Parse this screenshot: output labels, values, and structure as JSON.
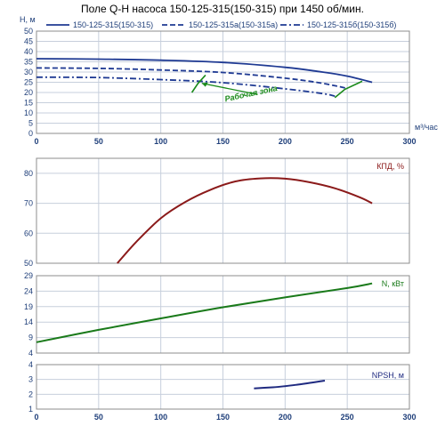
{
  "title": "Поле Q-H насоса 150-125-315(150-315) при 1450 об/мин.",
  "colors": {
    "grid": "#c7cfdc",
    "frame": "#8c8c8c",
    "tick": "#1f3f7a",
    "qh": "#1f3a93",
    "eff": "#8b1a1a",
    "power": "#1a7a1a",
    "npsh": "#1f2a80",
    "zone": "#1a8a1a"
  },
  "chart_data": [
    {
      "id": "qh",
      "type": "line",
      "ylabel": "H, м",
      "xlabel": "м³/час",
      "xlim": [
        0,
        300
      ],
      "ylim": [
        0,
        50
      ],
      "xticks": [
        0,
        50,
        100,
        150,
        200,
        250,
        300
      ],
      "yticks": [
        0,
        5,
        10,
        15,
        20,
        25,
        30,
        35,
        40,
        45,
        50
      ],
      "grid": true,
      "legend_position": "top",
      "series": [
        {
          "name": "150-125-315(150-315)",
          "style": "solid",
          "x": [
            0,
            50,
            100,
            150,
            200,
            230,
            250,
            270
          ],
          "y": [
            36.5,
            36.3,
            35.8,
            34.7,
            32.3,
            30.0,
            28.0,
            25.0
          ]
        },
        {
          "name": "150-125-315а(150-315а)",
          "style": "dash",
          "x": [
            0,
            50,
            100,
            150,
            200,
            230,
            250
          ],
          "y": [
            32.0,
            31.8,
            31.0,
            29.8,
            27.0,
            24.5,
            22.0
          ]
        },
        {
          "name": "150-125-315б(150-315б)",
          "style": "dashdot",
          "x": [
            0,
            50,
            100,
            150,
            200,
            230,
            240
          ],
          "y": [
            27.5,
            27.3,
            26.3,
            24.8,
            21.8,
            19.5,
            18.2
          ]
        }
      ],
      "annotation": {
        "text": "Рабочая зона",
        "zone_left_x": [
          125,
          130,
          136
        ],
        "zone_left_y": [
          20.0,
          24.5,
          28.5
        ],
        "zone_right_x": [
          240,
          248,
          262
        ],
        "zone_right_y": [
          17.5,
          21.5,
          25.5
        ],
        "label_x": 152,
        "label_y": 15.5
      }
    },
    {
      "id": "eff",
      "type": "line",
      "label": "КПД, %",
      "xlim": [
        0,
        300
      ],
      "ylim": [
        50,
        85
      ],
      "yticks": [
        50,
        60,
        70,
        80
      ],
      "grid": true,
      "series": [
        {
          "x": [
            65,
            80,
            100,
            120,
            140,
            160,
            180,
            200,
            220,
            240,
            260,
            270
          ],
          "y": [
            50,
            57,
            65,
            70.5,
            74.5,
            77.3,
            78.3,
            78.2,
            77.0,
            75.0,
            72.0,
            70.0
          ]
        }
      ]
    },
    {
      "id": "power",
      "type": "line",
      "label": "N, кВт",
      "xlim": [
        0,
        300
      ],
      "ylim": [
        4,
        29
      ],
      "yticks": [
        4,
        9,
        14,
        19,
        24,
        29
      ],
      "grid": true,
      "series": [
        {
          "x": [
            0,
            50,
            100,
            150,
            200,
            250,
            270
          ],
          "y": [
            7.5,
            11.5,
            15.2,
            18.8,
            22.0,
            25.0,
            26.5
          ]
        }
      ]
    },
    {
      "id": "npsh",
      "type": "line",
      "label": "NPSH, м",
      "xlim": [
        0,
        300
      ],
      "ylim": [
        1,
        4
      ],
      "xticks": [
        0,
        50,
        100,
        150,
        200,
        250,
        300
      ],
      "yticks": [
        1,
        2,
        3,
        4
      ],
      "grid": true,
      "series": [
        {
          "x": [
            175,
            190,
            200,
            210,
            220,
            232
          ],
          "y": [
            2.4,
            2.47,
            2.55,
            2.65,
            2.77,
            2.92
          ]
        }
      ]
    }
  ]
}
